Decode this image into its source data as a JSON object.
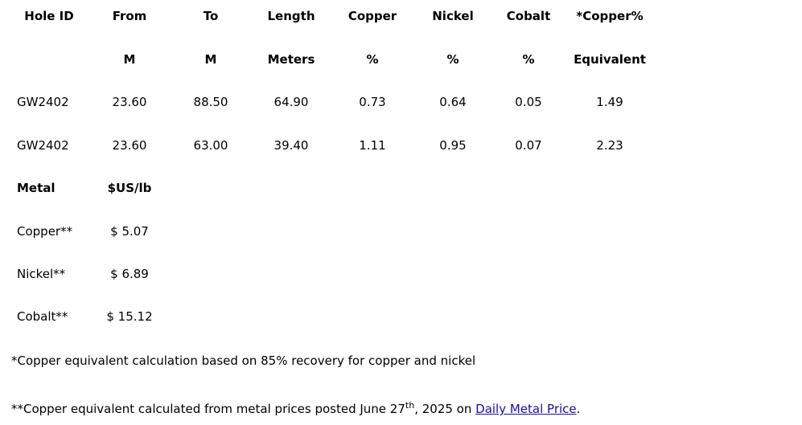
{
  "table": {
    "header": [
      "Hole ID",
      "From",
      "To",
      "Length",
      "Copper",
      "Nickel",
      "Cobalt",
      "*Copper%"
    ],
    "units": [
      "M",
      "M",
      "Meters",
      "%",
      "%",
      "%",
      "Equivalent"
    ],
    "rows": [
      [
        "GW2402",
        "23.60",
        "88.50",
        "64.90",
        "0.73",
        "0.64",
        "0.05",
        "1.49"
      ],
      [
        "GW2402",
        "23.60",
        "63.00",
        "39.40",
        "1.11",
        "0.95",
        "0.07",
        "2.23"
      ]
    ]
  },
  "prices": {
    "header": [
      "Metal",
      "$US/lb"
    ],
    "rows": [
      [
        "Copper**",
        "$ 5.07"
      ],
      [
        "Nickel**",
        "$ 6.89"
      ],
      [
        "Cobalt**",
        "$ 15.12"
      ]
    ]
  },
  "notes": {
    "note1": "*Copper equivalent calculation based on 85% recovery for copper and nickel",
    "note2": {
      "text": "**Copper equivalent calculated from metal prices posted June 27",
      "sup": "th",
      "mid": ", 2025 on ",
      "link": "Daily Metal Price",
      "end": "."
    }
  }
}
